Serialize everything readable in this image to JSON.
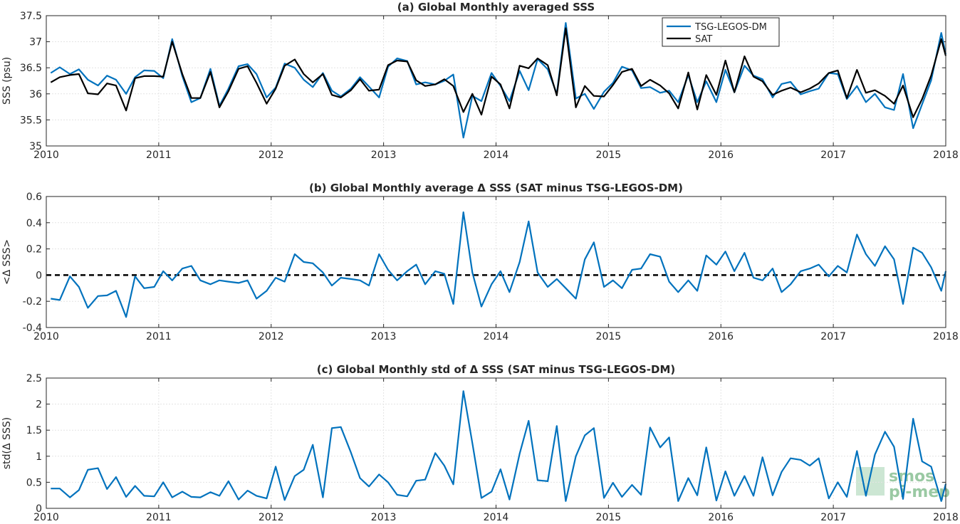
{
  "chart_data": [
    {
      "type": "line",
      "title": "(a) Global Monthly averaged SSS",
      "xlabel": "",
      "ylabel": "SSS (psu)",
      "xlim": [
        2010,
        2018
      ],
      "ylim": [
        35,
        37.5
      ],
      "xticks": [
        "2010",
        "2011",
        "2012",
        "2013",
        "2014",
        "2015",
        "2016",
        "2017",
        "2018"
      ],
      "yticks": [
        "35",
        "35.5",
        "36",
        "36.5",
        "37",
        "37.5"
      ],
      "grid": true,
      "legend": "top-center",
      "x": [
        2010.04,
        2010.12,
        2010.21,
        2010.29,
        2010.37,
        2010.46,
        2010.54,
        2010.62,
        2010.71,
        2010.79,
        2010.87,
        2010.96,
        2011.04,
        2011.12,
        2011.21,
        2011.29,
        2011.37,
        2011.46,
        2011.54,
        2011.62,
        2011.71,
        2011.79,
        2011.87,
        2011.96,
        2012.04,
        2012.12,
        2012.21,
        2012.29,
        2012.37,
        2012.46,
        2012.54,
        2012.62,
        2012.71,
        2012.79,
        2012.87,
        2012.96,
        2013.04,
        2013.12,
        2013.21,
        2013.29,
        2013.37,
        2013.46,
        2013.54,
        2013.62,
        2013.71,
        2013.79,
        2013.87,
        2013.96,
        2014.04,
        2014.12,
        2014.21,
        2014.29,
        2014.37,
        2014.46,
        2014.54,
        2014.62,
        2014.71,
        2014.79,
        2014.87,
        2014.96,
        2015.04,
        2015.12,
        2015.21,
        2015.29,
        2015.37,
        2015.46,
        2015.54,
        2015.62,
        2015.71,
        2015.79,
        2015.87,
        2015.96,
        2016.04,
        2016.12,
        2016.21,
        2016.29,
        2016.37,
        2016.46,
        2016.54,
        2016.62,
        2016.71,
        2016.79,
        2016.87,
        2016.96,
        2017.04,
        2017.12,
        2017.21,
        2017.29,
        2017.37,
        2017.46,
        2017.54,
        2017.62,
        2017.71,
        2017.79,
        2017.87,
        2017.96,
        2018.0
      ],
      "series": [
        {
          "name": "TSG-LEGOS-DM",
          "color": "#0072BD",
          "values": [
            36.4,
            36.51,
            36.38,
            36.47,
            36.27,
            36.16,
            36.35,
            36.27,
            36.0,
            36.32,
            36.45,
            36.44,
            36.3,
            37.05,
            36.34,
            35.84,
            35.92,
            36.48,
            35.77,
            36.1,
            36.53,
            36.57,
            36.38,
            35.93,
            36.12,
            36.58,
            36.5,
            36.27,
            36.13,
            36.4,
            36.06,
            35.95,
            36.1,
            36.32,
            36.14,
            35.93,
            36.52,
            36.68,
            36.63,
            36.18,
            36.22,
            36.18,
            36.25,
            36.37,
            35.16,
            35.96,
            35.86,
            36.4,
            36.15,
            35.86,
            36.44,
            36.07,
            36.67,
            36.47,
            36.0,
            37.36,
            35.91,
            36.0,
            35.71,
            36.04,
            36.21,
            36.52,
            36.45,
            36.11,
            36.13,
            36.02,
            36.06,
            35.84,
            36.36,
            35.84,
            36.24,
            35.84,
            36.46,
            36.03,
            36.54,
            36.35,
            36.28,
            35.93,
            36.19,
            36.23,
            35.99,
            36.05,
            36.1,
            36.4,
            36.38,
            35.9,
            36.15,
            35.84,
            36.0,
            35.74,
            35.69,
            36.38,
            35.34,
            35.8,
            36.26,
            37.17,
            36.76
          ]
        },
        {
          "name": "SAT",
          "color": "#000000",
          "values": [
            36.22,
            36.32,
            36.36,
            36.38,
            36.01,
            35.99,
            36.2,
            36.16,
            35.68,
            36.3,
            36.34,
            36.34,
            36.33,
            37.0,
            36.38,
            35.92,
            35.92,
            36.42,
            35.74,
            36.05,
            36.48,
            36.53,
            36.21,
            35.81,
            36.1,
            36.54,
            36.66,
            36.38,
            36.22,
            36.38,
            35.98,
            35.93,
            36.07,
            36.28,
            36.06,
            36.08,
            36.55,
            36.64,
            36.62,
            36.26,
            36.15,
            36.18,
            36.28,
            36.15,
            35.65,
            36.0,
            35.6,
            36.33,
            36.18,
            35.72,
            36.54,
            36.49,
            36.68,
            36.55,
            35.97,
            37.26,
            35.74,
            36.15,
            35.96,
            35.95,
            36.17,
            36.42,
            36.48,
            36.15,
            36.27,
            36.16,
            36.01,
            35.72,
            36.41,
            35.7,
            36.36,
            35.98,
            36.64,
            36.03,
            36.72,
            36.33,
            36.24,
            35.98,
            36.06,
            36.12,
            36.03,
            36.1,
            36.2,
            36.4,
            36.45,
            35.92,
            36.46,
            36.02,
            36.07,
            35.96,
            35.81,
            36.16,
            35.55,
            35.9,
            36.35,
            37.05,
            36.73
          ]
        }
      ]
    },
    {
      "type": "line",
      "title": "(b) Global Monthly average Δ SSS (SAT minus TSG-LEGOS-DM)",
      "xlabel": "",
      "ylabel": "<Δ SSS>",
      "xlim": [
        2010,
        2018
      ],
      "ylim": [
        -0.4,
        0.6
      ],
      "xticks": [
        "2010",
        "2011",
        "2012",
        "2013",
        "2014",
        "2015",
        "2016",
        "2017",
        "2018"
      ],
      "yticks": [
        "-0.4",
        "-0.2",
        "0",
        "0.2",
        "0.4",
        "0.6"
      ],
      "grid": true,
      "reference_line": 0,
      "x": [
        2010.04,
        2010.12,
        2010.21,
        2010.29,
        2010.37,
        2010.46,
        2010.54,
        2010.62,
        2010.71,
        2010.79,
        2010.87,
        2010.96,
        2011.04,
        2011.12,
        2011.21,
        2011.29,
        2011.37,
        2011.46,
        2011.54,
        2011.62,
        2011.71,
        2011.79,
        2011.87,
        2011.96,
        2012.04,
        2012.12,
        2012.21,
        2012.29,
        2012.37,
        2012.46,
        2012.54,
        2012.62,
        2012.71,
        2012.79,
        2012.87,
        2012.96,
        2013.04,
        2013.12,
        2013.21,
        2013.29,
        2013.37,
        2013.46,
        2013.54,
        2013.62,
        2013.71,
        2013.79,
        2013.87,
        2013.96,
        2014.04,
        2014.12,
        2014.21,
        2014.29,
        2014.37,
        2014.46,
        2014.54,
        2014.62,
        2014.71,
        2014.79,
        2014.87,
        2014.96,
        2015.04,
        2015.12,
        2015.21,
        2015.29,
        2015.37,
        2015.46,
        2015.54,
        2015.62,
        2015.71,
        2015.79,
        2015.87,
        2015.96,
        2016.04,
        2016.12,
        2016.21,
        2016.29,
        2016.37,
        2016.46,
        2016.54,
        2016.62,
        2016.71,
        2016.79,
        2016.87,
        2016.96,
        2017.04,
        2017.12,
        2017.21,
        2017.29,
        2017.37,
        2017.46,
        2017.54,
        2017.62,
        2017.71,
        2017.79,
        2017.87,
        2017.96,
        2018.0
      ],
      "series": [
        {
          "name": "",
          "color": "#0072BD",
          "values": [
            -0.18,
            -0.19,
            -0.01,
            -0.09,
            -0.25,
            -0.16,
            -0.155,
            -0.12,
            -0.32,
            -0.01,
            -0.1,
            -0.09,
            0.03,
            -0.04,
            0.05,
            0.07,
            -0.04,
            -0.07,
            -0.04,
            -0.05,
            -0.06,
            -0.04,
            -0.18,
            -0.12,
            -0.02,
            -0.05,
            0.16,
            0.1,
            0.09,
            0.02,
            -0.08,
            -0.02,
            -0.03,
            -0.04,
            -0.08,
            0.16,
            0.04,
            -0.04,
            0.03,
            0.08,
            -0.07,
            0.03,
            0.01,
            -0.22,
            0.48,
            0.02,
            -0.24,
            -0.07,
            0.03,
            -0.13,
            0.1,
            0.41,
            0.02,
            -0.09,
            -0.03,
            -0.1,
            -0.18,
            0.12,
            0.25,
            -0.09,
            -0.04,
            -0.1,
            0.04,
            0.05,
            0.16,
            0.14,
            -0.05,
            -0.13,
            -0.04,
            -0.12,
            0.15,
            0.08,
            0.18,
            0.03,
            0.17,
            -0.02,
            -0.04,
            0.05,
            -0.13,
            -0.07,
            0.03,
            0.05,
            0.08,
            -0.01,
            0.07,
            0.02,
            0.31,
            0.16,
            0.07,
            0.22,
            0.12,
            -0.22,
            0.21,
            0.17,
            0.06,
            -0.12,
            0.03
          ]
        }
      ]
    },
    {
      "type": "line",
      "title": "(c) Global Monthly std of Δ SSS (SAT minus TSG-LEGOS-DM)",
      "xlabel": "",
      "ylabel": "std(Δ SSS)",
      "xlim": [
        2010,
        2018
      ],
      "ylim": [
        0,
        2.5
      ],
      "xticks": [
        "2010",
        "2011",
        "2012",
        "2013",
        "2014",
        "2015",
        "2016",
        "2017",
        "2018"
      ],
      "yticks": [
        "0",
        "0.5",
        "1",
        "1.5",
        "2",
        "2.5"
      ],
      "grid": true,
      "x": [
        2010.04,
        2010.12,
        2010.21,
        2010.29,
        2010.37,
        2010.46,
        2010.54,
        2010.62,
        2010.71,
        2010.79,
        2010.87,
        2010.96,
        2011.04,
        2011.12,
        2011.21,
        2011.29,
        2011.37,
        2011.46,
        2011.54,
        2011.62,
        2011.71,
        2011.79,
        2011.87,
        2011.96,
        2012.04,
        2012.12,
        2012.21,
        2012.29,
        2012.37,
        2012.46,
        2012.54,
        2012.62,
        2012.71,
        2012.79,
        2012.87,
        2012.96,
        2013.04,
        2013.12,
        2013.21,
        2013.29,
        2013.37,
        2013.46,
        2013.54,
        2013.62,
        2013.71,
        2013.79,
        2013.87,
        2013.96,
        2014.04,
        2014.12,
        2014.21,
        2014.29,
        2014.37,
        2014.46,
        2014.54,
        2014.62,
        2014.71,
        2014.79,
        2014.87,
        2014.96,
        2015.04,
        2015.12,
        2015.21,
        2015.29,
        2015.37,
        2015.46,
        2015.54,
        2015.62,
        2015.71,
        2015.79,
        2015.87,
        2015.96,
        2016.04,
        2016.12,
        2016.21,
        2016.29,
        2016.37,
        2016.46,
        2016.54,
        2016.62,
        2016.71,
        2016.79,
        2016.87,
        2016.96,
        2017.04,
        2017.12,
        2017.21,
        2017.29,
        2017.37,
        2017.46,
        2017.54,
        2017.62,
        2017.71,
        2017.79,
        2017.87,
        2017.96,
        2018.0
      ],
      "series": [
        {
          "name": "",
          "color": "#0072BD",
          "values": [
            0.38,
            0.38,
            0.21,
            0.35,
            0.74,
            0.77,
            0.37,
            0.6,
            0.22,
            0.43,
            0.24,
            0.23,
            0.5,
            0.21,
            0.32,
            0.22,
            0.21,
            0.31,
            0.24,
            0.52,
            0.17,
            0.34,
            0.24,
            0.19,
            0.8,
            0.16,
            0.62,
            0.74,
            1.22,
            0.21,
            1.54,
            1.56,
            1.07,
            0.58,
            0.42,
            0.65,
            0.5,
            0.26,
            0.23,
            0.53,
            0.55,
            1.06,
            0.82,
            0.46,
            2.25,
            1.25,
            0.2,
            0.32,
            0.75,
            0.17,
            1.05,
            1.68,
            0.54,
            0.52,
            1.58,
            0.14,
            1.0,
            1.4,
            1.54,
            0.2,
            0.49,
            0.22,
            0.45,
            0.26,
            1.55,
            1.17,
            1.36,
            0.14,
            0.58,
            0.25,
            1.17,
            0.15,
            0.71,
            0.24,
            0.62,
            0.24,
            0.98,
            0.25,
            0.7,
            0.96,
            0.93,
            0.82,
            0.96,
            0.19,
            0.5,
            0.22,
            1.1,
            0.24,
            1.03,
            1.47,
            1.18,
            0.18,
            1.72,
            0.9,
            0.8,
            0.14,
            0.47
          ]
        }
      ]
    }
  ],
  "watermark": {
    "line1": "smos",
    "line2": "pi-mep"
  }
}
